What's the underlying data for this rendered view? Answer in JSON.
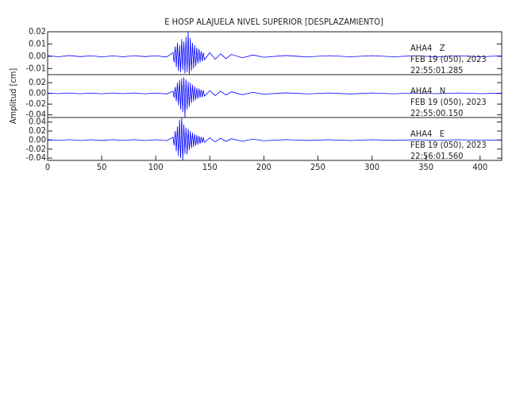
{
  "chart_data": [
    {
      "type": "line",
      "title": "E HOSP ALAJUELA NIVEL SUPERIOR [DESPLAZAMIENTO]",
      "y_label": "Amplitud [cm]",
      "annotations": [
        "AHA4   Z",
        "FEB 19 (050), 2023",
        "22:55:01.285"
      ],
      "color": "#0000ff",
      "xlim": [
        0,
        420
      ],
      "ylim": [
        -0.015,
        0.02
      ],
      "yticks": [
        -0.01,
        {
          "value": 0,
          "label": "0.00"
        },
        0.01,
        0.02
      ],
      "x": [
        0,
        10,
        20,
        30,
        40,
        50,
        60,
        70,
        80,
        90,
        100,
        110,
        116,
        117,
        118,
        119,
        120,
        121,
        122,
        123,
        124,
        125,
        126,
        127,
        128,
        129,
        130,
        131,
        132,
        133,
        134,
        135,
        136,
        137,
        138,
        139,
        140,
        141,
        142,
        143,
        144,
        145,
        150,
        155,
        160,
        165,
        170,
        180,
        190,
        200,
        220,
        240,
        260,
        280,
        300,
        320,
        340,
        360,
        380,
        400,
        420
      ],
      "values": [
        0.0005,
        -0.0004,
        0.0006,
        -0.0003,
        0.0004,
        -0.0005,
        0.0003,
        -0.0004,
        0.0005,
        -0.0003,
        0.0004,
        -0.0006,
        0.003,
        -0.005,
        0.008,
        -0.009,
        0.011,
        -0.012,
        0.009,
        -0.013,
        0.014,
        -0.011,
        0.012,
        -0.014,
        0.016,
        -0.013,
        0.02,
        -0.015,
        0.015,
        -0.012,
        0.011,
        -0.01,
        0.009,
        -0.008,
        0.007,
        -0.006,
        0.006,
        -0.005,
        0.004,
        -0.004,
        0.003,
        -0.003,
        0.003,
        -0.0025,
        0.002,
        -0.002,
        0.0015,
        -0.0012,
        0.001,
        -0.0008,
        0.0006,
        -0.0005,
        0.0005,
        -0.0004,
        0.0005,
        -0.0004,
        0.0004,
        -0.0005,
        0.0004,
        -0.0004,
        0.0003
      ]
    },
    {
      "type": "line",
      "annotations": [
        "AHA4   N",
        "FEB 19 (050), 2023",
        "22:55:00.150"
      ],
      "color": "#0000ff",
      "xlim": [
        0,
        420
      ],
      "ylim": [
        -0.045,
        0.035
      ],
      "yticks": [
        -0.04,
        -0.02,
        {
          "value": 0,
          "label": "0.00"
        },
        0.02
      ],
      "x": [
        0,
        10,
        20,
        30,
        40,
        50,
        60,
        70,
        80,
        90,
        100,
        110,
        116,
        117,
        118,
        119,
        120,
        121,
        122,
        123,
        124,
        125,
        126,
        127,
        128,
        129,
        130,
        131,
        132,
        133,
        134,
        135,
        136,
        137,
        138,
        139,
        140,
        141,
        142,
        143,
        144,
        145,
        150,
        155,
        160,
        165,
        170,
        180,
        190,
        200,
        220,
        240,
        260,
        280,
        300,
        320,
        340,
        360,
        380,
        400,
        420
      ],
      "values": [
        0.0008,
        -0.0006,
        0.0007,
        -0.0008,
        0.0006,
        -0.0007,
        0.0008,
        -0.0006,
        0.0007,
        -0.0008,
        0.0006,
        -0.001,
        0.004,
        -0.008,
        0.012,
        -0.015,
        0.02,
        -0.022,
        0.025,
        -0.03,
        0.028,
        -0.035,
        0.03,
        -0.045,
        0.026,
        -0.03,
        0.022,
        -0.025,
        0.02,
        -0.018,
        0.016,
        -0.015,
        0.013,
        -0.012,
        0.01,
        -0.01,
        0.009,
        -0.008,
        0.007,
        -0.007,
        0.006,
        -0.005,
        0.005,
        -0.004,
        0.004,
        -0.003,
        0.003,
        -0.0025,
        0.002,
        -0.0015,
        0.001,
        -0.0009,
        0.0008,
        -0.001,
        0.0008,
        -0.0007,
        0.0008,
        -0.0006,
        0.0007,
        -0.0006,
        0.0005
      ]
    },
    {
      "type": "line",
      "annotations": [
        "AHA4   E",
        "FEB 19 (050), 2023",
        "22:56:01.560"
      ],
      "color": "#0000ff",
      "xlim": [
        0,
        420
      ],
      "ylim": [
        -0.045,
        0.05
      ],
      "yticks": [
        -0.04,
        -0.02,
        {
          "value": 0,
          "label": "0.00"
        },
        0.02,
        0.04
      ],
      "xticks": [
        0,
        50,
        100,
        150,
        200,
        250,
        300,
        350,
        400
      ],
      "x": [
        0,
        10,
        20,
        30,
        40,
        50,
        60,
        70,
        80,
        90,
        100,
        110,
        116,
        117,
        118,
        119,
        120,
        121,
        122,
        123,
        124,
        125,
        126,
        127,
        128,
        129,
        130,
        131,
        132,
        133,
        134,
        135,
        136,
        137,
        138,
        139,
        140,
        141,
        142,
        143,
        144,
        145,
        150,
        155,
        160,
        165,
        170,
        180,
        190,
        200,
        220,
        240,
        260,
        280,
        300,
        320,
        340,
        360,
        380,
        400,
        420
      ],
      "values": [
        0.001,
        -0.0008,
        0.0009,
        -0.001,
        0.0008,
        -0.0009,
        0.001,
        -0.0008,
        0.0009,
        -0.001,
        0.0008,
        -0.0012,
        0.006,
        -0.012,
        0.02,
        -0.025,
        0.03,
        -0.035,
        0.045,
        -0.04,
        0.05,
        -0.045,
        0.035,
        -0.03,
        0.028,
        -0.032,
        0.025,
        -0.022,
        0.02,
        -0.018,
        0.016,
        -0.015,
        0.013,
        -0.012,
        0.011,
        -0.01,
        0.009,
        -0.008,
        0.007,
        -0.006,
        0.006,
        -0.005,
        0.005,
        -0.004,
        0.004,
        -0.003,
        0.003,
        -0.0025,
        0.002,
        -0.0015,
        0.001,
        -0.0009,
        0.0008,
        -0.001,
        0.0008,
        -0.0007,
        0.0008,
        -0.0006,
        0.0007,
        -0.0006,
        0.0005
      ]
    }
  ]
}
